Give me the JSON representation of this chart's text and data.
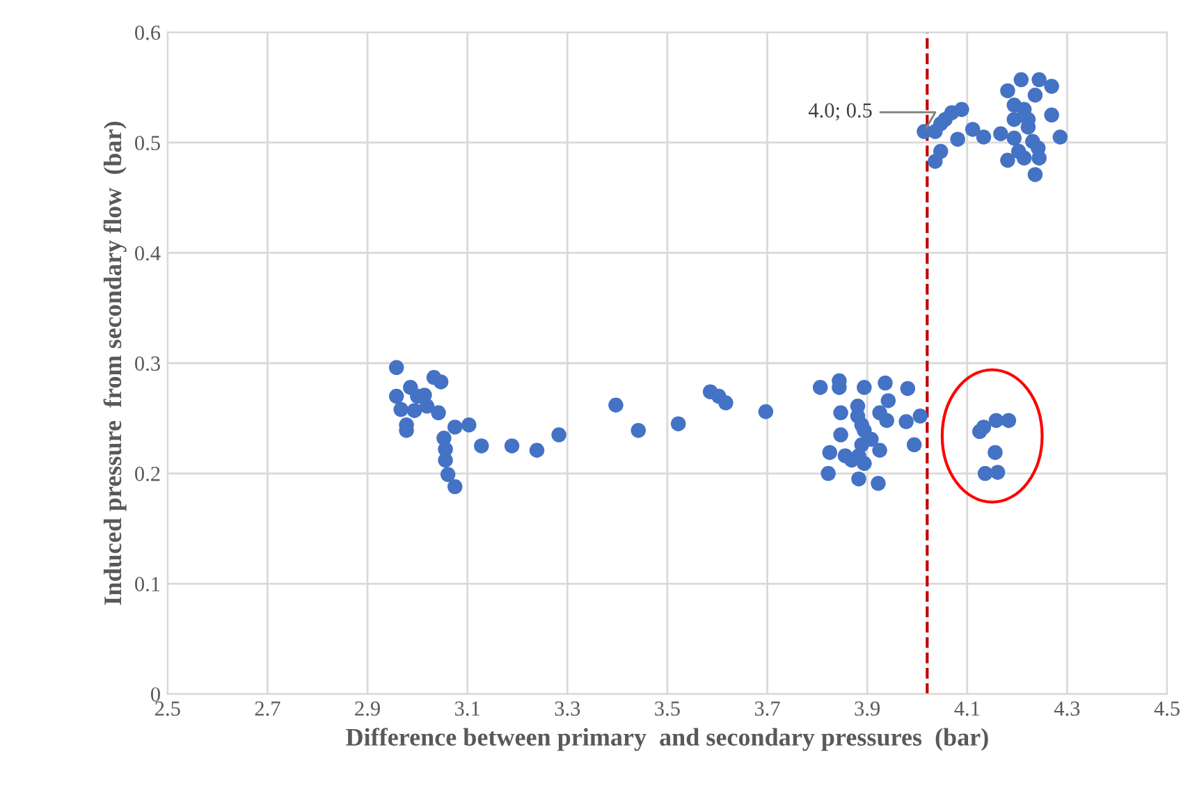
{
  "chart_data": {
    "type": "scatter",
    "xlabel": "Difference between primary  and secondary pressures  (bar)",
    "ylabel": "Induced pressure  from secondary flow  (bar)",
    "xlim": [
      2.5,
      4.5
    ],
    "xticks": [
      {
        "value": 2.5,
        "label": "2.5"
      },
      {
        "value": 2.7,
        "label": "2.7"
      },
      {
        "value": 2.9,
        "label": "2.9"
      },
      {
        "value": 3.1,
        "label": "3.1"
      },
      {
        "value": 3.3,
        "label": "3.3"
      },
      {
        "value": 3.5,
        "label": "3.5"
      },
      {
        "value": 3.7,
        "label": "3.7"
      },
      {
        "value": 3.9,
        "label": "3.9"
      },
      {
        "value": 4.1,
        "label": "4.1"
      },
      {
        "value": 4.3,
        "label": "4.3"
      },
      {
        "value": 4.5,
        "label": "4.5"
      }
    ],
    "ylim": [
      0,
      0.6
    ],
    "yticks": [
      {
        "value": 0,
        "label": "0"
      },
      {
        "value": 0.1,
        "label": "0.1"
      },
      {
        "value": 0.2,
        "label": "0.2"
      },
      {
        "value": 0.3,
        "label": "0.3"
      },
      {
        "value": 0.4,
        "label": "0.4"
      },
      {
        "value": 0.5,
        "label": "0.5"
      },
      {
        "value": 0.6,
        "label": "0.6"
      }
    ],
    "grid": true,
    "marker": "circle",
    "series": [
      {
        "color": "#4472c4",
        "x": [
          2.958,
          2.958,
          2.986,
          2.967,
          2.978,
          2.978,
          3.0,
          3.014,
          3.033,
          3.047,
          3.019,
          3.042,
          2.994,
          3.103,
          3.075,
          3.053,
          3.056,
          3.056,
          3.061,
          3.075,
          3.128,
          3.189,
          3.239,
          3.283,
          3.397,
          3.442,
          3.522,
          3.586,
          3.603,
          3.617,
          3.697,
          3.806,
          3.844,
          3.844,
          3.894,
          3.936,
          3.981,
          3.942,
          3.847,
          3.881,
          3.925,
          3.939,
          3.978,
          4.006,
          3.847,
          3.894,
          3.908,
          3.889,
          3.925,
          3.994,
          3.825,
          3.856,
          3.869,
          3.894,
          3.883,
          3.822,
          3.883,
          3.922,
          3.881,
          3.889,
          4.125,
          4.133,
          4.158,
          4.183,
          4.156,
          4.136,
          4.161,
          4.014,
          4.036,
          4.056,
          4.069,
          4.089,
          4.047,
          4.047,
          4.036,
          4.081,
          4.111,
          4.133,
          4.167,
          4.181,
          4.208,
          4.244,
          4.269,
          4.236,
          4.194,
          4.214,
          4.269,
          4.286,
          4.194,
          4.222,
          4.194,
          4.231,
          4.181,
          4.214,
          4.244,
          4.203,
          4.236,
          4.242,
          4.222
        ],
        "values": [
          0.296,
          0.27,
          0.278,
          0.258,
          0.244,
          0.239,
          0.27,
          0.271,
          0.287,
          0.283,
          0.261,
          0.255,
          0.257,
          0.244,
          0.242,
          0.232,
          0.222,
          0.212,
          0.199,
          0.188,
          0.225,
          0.225,
          0.221,
          0.235,
          0.262,
          0.239,
          0.245,
          0.274,
          0.27,
          0.264,
          0.256,
          0.278,
          0.284,
          0.278,
          0.278,
          0.282,
          0.277,
          0.266,
          0.255,
          0.261,
          0.255,
          0.248,
          0.247,
          0.252,
          0.235,
          0.239,
          0.231,
          0.226,
          0.221,
          0.226,
          0.219,
          0.216,
          0.212,
          0.209,
          0.216,
          0.2,
          0.195,
          0.191,
          0.252,
          0.244,
          0.238,
          0.242,
          0.248,
          0.248,
          0.219,
          0.2,
          0.201,
          0.51,
          0.51,
          0.521,
          0.527,
          0.53,
          0.517,
          0.492,
          0.483,
          0.503,
          0.512,
          0.505,
          0.508,
          0.547,
          0.557,
          0.557,
          0.551,
          0.543,
          0.534,
          0.53,
          0.525,
          0.505,
          0.521,
          0.514,
          0.504,
          0.501,
          0.484,
          0.486,
          0.486,
          0.492,
          0.471,
          0.495,
          0.521
        ]
      }
    ],
    "ref_lines": [
      {
        "axis": "x",
        "value": 4.02,
        "color": "#c00000",
        "line_style": "dashed"
      }
    ],
    "annotations": [
      {
        "text": "4.0; 0.5",
        "x": 4.014,
        "y": 0.51
      }
    ]
  }
}
